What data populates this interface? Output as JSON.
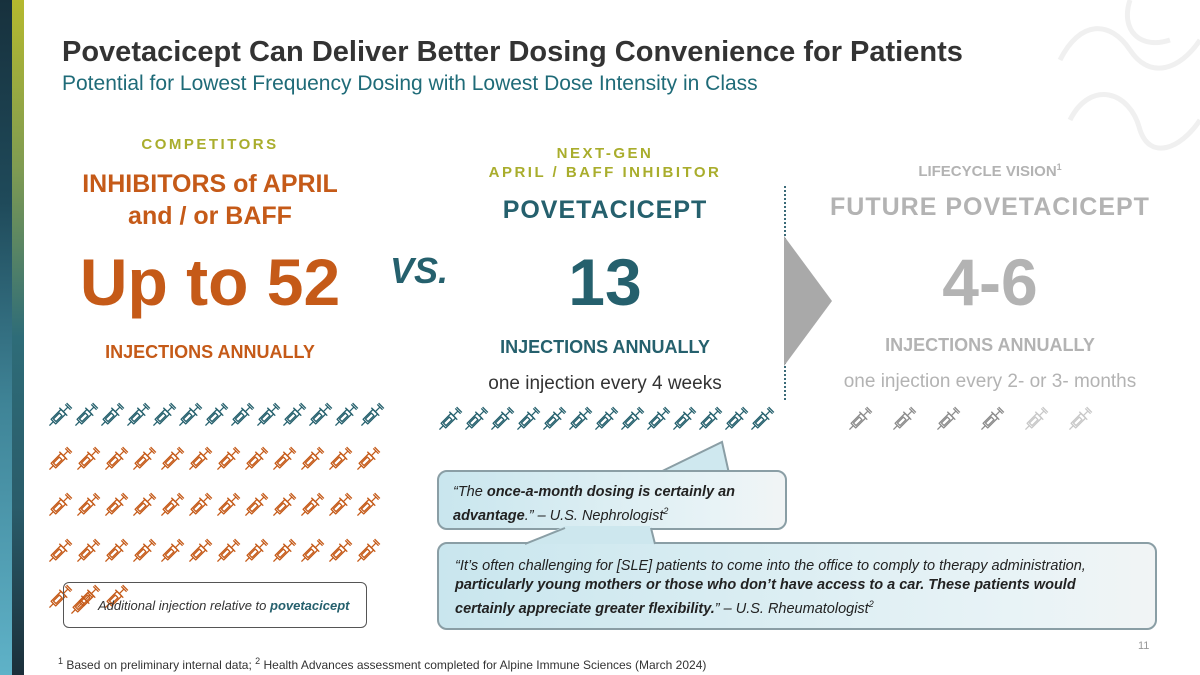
{
  "header": {
    "title": "Povetacicept Can Deliver Better Dosing Convenience for Patients",
    "subtitle": "Potential for Lowest Frequency Dosing with Lowest Dose Intensity in Class"
  },
  "competitors": {
    "label": "COMPETITORS",
    "name_line1": "INHIBITORS of APRIL",
    "name_line2": "and / or BAFF",
    "number": "Up to 52",
    "unit": "INJECTIONS ANNUALLY",
    "baseline_injections": 13,
    "additional_injections": 39
  },
  "vs": "VS.",
  "nextgen": {
    "label_line1": "NEXT-GEN",
    "label_line2": "APRIL / BAFF INHIBITOR",
    "name": "POVETACICEPT",
    "number": "13",
    "unit": "INJECTIONS ANNUALLY",
    "frequency": "one injection every 4 weeks",
    "injections": 13
  },
  "lifecycle": {
    "label": "LIFECYCLE VISION",
    "label_sup": "1",
    "name": "FUTURE POVETACICEPT",
    "number": "4-6",
    "unit": "INJECTIONS ANNUALLY",
    "frequency": "one injection every 2- or 3- months",
    "injections_firm": 4,
    "injections_optional": 2
  },
  "legend": {
    "text": "Additional injection relative to ",
    "highlight": "povetacicept"
  },
  "quote1": {
    "pre": "“The ",
    "bold": "once-a-month dosing is certainly an advantage",
    "post": ".” – U.S. Nephrologist",
    "sup": "2"
  },
  "quote2": {
    "pre": "“It’s often challenging for [SLE] patients to come into the office to comply to therapy administration, ",
    "bold": "particularly young mothers or those who don’t have access to a car. These patients would certainly appreciate greater flexibility.",
    "post": "” – U.S. Rheumatologist",
    "sup": "2"
  },
  "footnote": {
    "sup1": "1",
    "text1": " Based on preliminary internal data; ",
    "sup2": "2",
    "text2": " Health Advances assessment completed for Alpine Immune Sciences (March 2024)"
  },
  "page_number": "11",
  "colors": {
    "orange": "#c55a18",
    "teal": "#25606d",
    "gray": "#8c8c8c",
    "light_gray": "#c8c8c8",
    "accent": "#a9ad2c"
  }
}
